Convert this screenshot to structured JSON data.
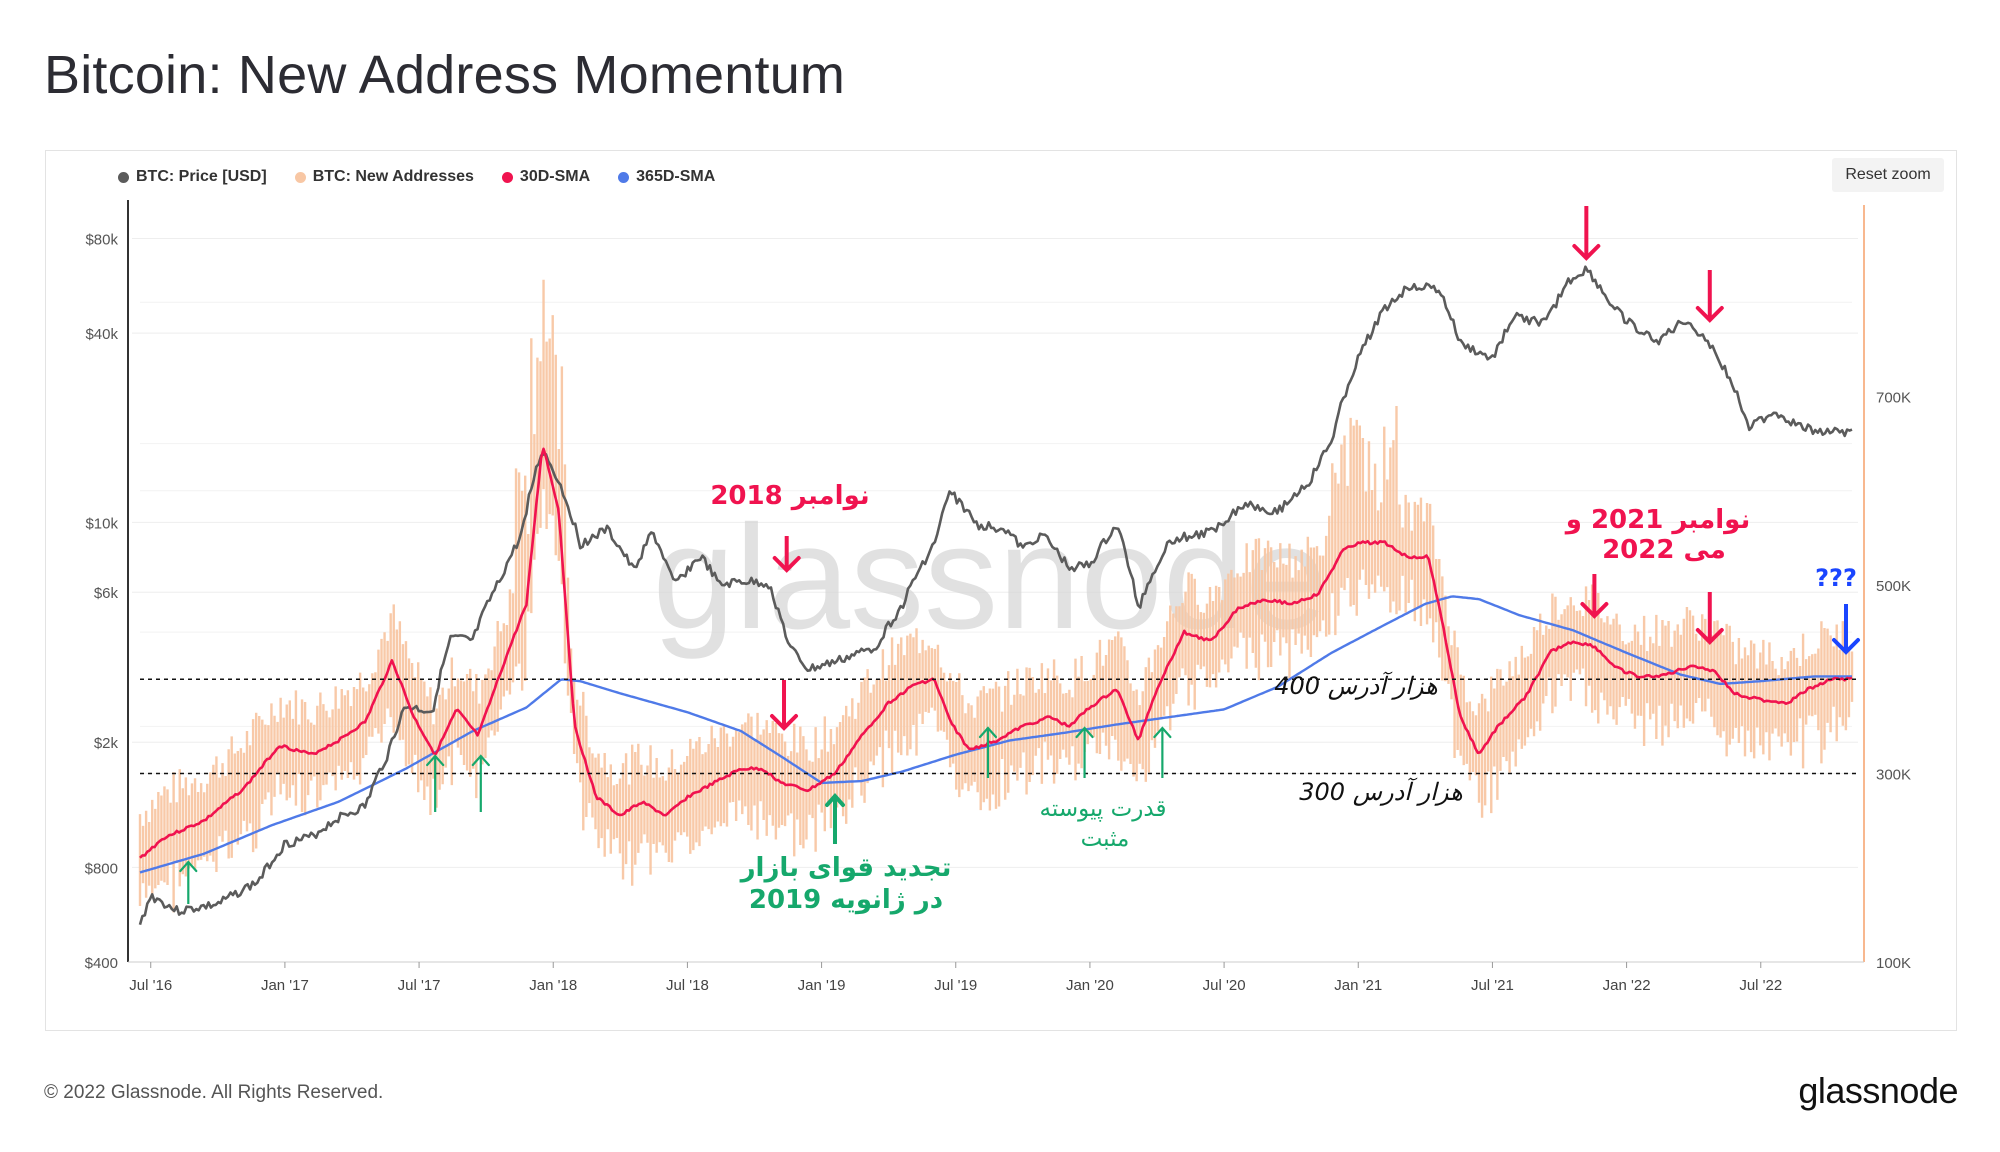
{
  "page": {
    "title": "Bitcoin: New Address Momentum",
    "reset_zoom": "Reset zoom",
    "copyright": "© 2022 Glassnode. All Rights Reserved.",
    "logo": "glassnode",
    "watermark": "glassnode"
  },
  "legend": [
    {
      "label": "BTC: Price [USD]",
      "color": "#5b5b5b"
    },
    {
      "label": "BTC: New Addresses",
      "color": "#f8c7a4"
    },
    {
      "label": "30D-SMA",
      "color": "#f0134f"
    },
    {
      "label": "365D-SMA",
      "color": "#4f7ae8"
    }
  ],
  "chart_data": {
    "type": "line",
    "title": "Bitcoin: New Address Momentum",
    "x_range": [
      2016.46,
      2022.84
    ],
    "x_ticks": [
      {
        "label": "Jul '16",
        "t": 2016.5
      },
      {
        "label": "Jan '17",
        "t": 2017.0
      },
      {
        "label": "Jul '17",
        "t": 2017.5
      },
      {
        "label": "Jan '18",
        "t": 2018.0
      },
      {
        "label": "Jul '18",
        "t": 2018.5
      },
      {
        "label": "Jan '19",
        "t": 2019.0
      },
      {
        "label": "Jul '19",
        "t": 2019.5
      },
      {
        "label": "Jan '20",
        "t": 2020.0
      },
      {
        "label": "Jul '20",
        "t": 2020.5
      },
      {
        "label": "Jan '21",
        "t": 2021.0
      },
      {
        "label": "Jul '21",
        "t": 2021.5
      },
      {
        "label": "Jan '22",
        "t": 2022.0
      },
      {
        "label": "Jul '22",
        "t": 2022.5
      }
    ],
    "left_axis": {
      "scale": "log",
      "range": [
        400,
        100000
      ],
      "ticks": [
        {
          "label": "$400",
          "v": 400
        },
        {
          "label": "$800",
          "v": 800
        },
        {
          "label": "$2k",
          "v": 2000
        },
        {
          "label": "$6k",
          "v": 6000
        },
        {
          "label": "$10k",
          "v": 10000
        },
        {
          "label": "$40k",
          "v": 40000
        },
        {
          "label": "$80k",
          "v": 80000
        }
      ]
    },
    "right_axis": {
      "scale": "linear",
      "range": [
        100000,
        900000
      ],
      "ticks": [
        {
          "label": "100K",
          "v": 100000
        },
        {
          "label": "300K",
          "v": 300000
        },
        {
          "label": "500K",
          "v": 500000
        },
        {
          "label": "700K",
          "v": 700000
        }
      ]
    },
    "series": [
      {
        "name": "BTC: Price [USD]",
        "axis": "left",
        "color": "#5b5b5b",
        "points": [
          [
            2016.46,
            520
          ],
          [
            2016.5,
            650
          ],
          [
            2016.6,
            580
          ],
          [
            2016.75,
            610
          ],
          [
            2016.9,
            720
          ],
          [
            2017.0,
            950
          ],
          [
            2017.1,
            1000
          ],
          [
            2017.2,
            1150
          ],
          [
            2017.3,
            1250
          ],
          [
            2017.38,
            1800
          ],
          [
            2017.45,
            2600
          ],
          [
            2017.55,
            2500
          ],
          [
            2017.62,
            4300
          ],
          [
            2017.7,
            4200
          ],
          [
            2017.8,
            6500
          ],
          [
            2017.88,
            9000
          ],
          [
            2017.96,
            17000
          ],
          [
            2018.02,
            13500
          ],
          [
            2018.1,
            8500
          ],
          [
            2018.2,
            9500
          ],
          [
            2018.3,
            7000
          ],
          [
            2018.37,
            9300
          ],
          [
            2018.45,
            6300
          ],
          [
            2018.55,
            7800
          ],
          [
            2018.62,
            6300
          ],
          [
            2018.7,
            6500
          ],
          [
            2018.8,
            6400
          ],
          [
            2018.88,
            4000
          ],
          [
            2018.95,
            3400
          ],
          [
            2019.05,
            3600
          ],
          [
            2019.2,
            4000
          ],
          [
            2019.3,
            5400
          ],
          [
            2019.42,
            8500
          ],
          [
            2019.48,
            12500
          ],
          [
            2019.58,
            9800
          ],
          [
            2019.68,
            9600
          ],
          [
            2019.75,
            8200
          ],
          [
            2019.82,
            9200
          ],
          [
            2019.92,
            7200
          ],
          [
            2020.0,
            7300
          ],
          [
            2020.1,
            9800
          ],
          [
            2020.18,
            5300
          ],
          [
            2020.3,
            8800
          ],
          [
            2020.45,
            9300
          ],
          [
            2020.58,
            11500
          ],
          [
            2020.7,
            10800
          ],
          [
            2020.82,
            13500
          ],
          [
            2020.9,
            18000
          ],
          [
            2021.0,
            33000
          ],
          [
            2021.1,
            48000
          ],
          [
            2021.2,
            57000
          ],
          [
            2021.3,
            55000
          ],
          [
            2021.38,
            37000
          ],
          [
            2021.5,
            33000
          ],
          [
            2021.58,
            45000
          ],
          [
            2021.7,
            43000
          ],
          [
            2021.78,
            58000
          ],
          [
            2021.85,
            64000
          ],
          [
            2021.95,
            48000
          ],
          [
            2022.05,
            40000
          ],
          [
            2022.12,
            38000
          ],
          [
            2022.22,
            44000
          ],
          [
            2022.3,
            38000
          ],
          [
            2022.37,
            30000
          ],
          [
            2022.46,
            20000
          ],
          [
            2022.55,
            22500
          ],
          [
            2022.65,
            20000
          ],
          [
            2022.75,
            19500
          ],
          [
            2022.84,
            19200
          ]
        ]
      },
      {
        "name": "30D-SMA",
        "axis": "right",
        "color": "#f0134f",
        "points": [
          [
            2016.46,
            210000
          ],
          [
            2016.55,
            232000
          ],
          [
            2016.7,
            250000
          ],
          [
            2016.85,
            285000
          ],
          [
            2016.98,
            330000
          ],
          [
            2017.1,
            320000
          ],
          [
            2017.2,
            335000
          ],
          [
            2017.3,
            355000
          ],
          [
            2017.4,
            420000
          ],
          [
            2017.48,
            360000
          ],
          [
            2017.56,
            320000
          ],
          [
            2017.64,
            368000
          ],
          [
            2017.72,
            340000
          ],
          [
            2017.82,
            420000
          ],
          [
            2017.9,
            480000
          ],
          [
            2017.96,
            650000
          ],
          [
            2018.02,
            580000
          ],
          [
            2018.08,
            350000
          ],
          [
            2018.16,
            275000
          ],
          [
            2018.25,
            255000
          ],
          [
            2018.33,
            270000
          ],
          [
            2018.42,
            255000
          ],
          [
            2018.5,
            275000
          ],
          [
            2018.6,
            290000
          ],
          [
            2018.7,
            305000
          ],
          [
            2018.78,
            305000
          ],
          [
            2018.85,
            290000
          ],
          [
            2018.95,
            282000
          ],
          [
            2019.05,
            300000
          ],
          [
            2019.15,
            340000
          ],
          [
            2019.25,
            375000
          ],
          [
            2019.35,
            395000
          ],
          [
            2019.42,
            400000
          ],
          [
            2019.48,
            355000
          ],
          [
            2019.55,
            325000
          ],
          [
            2019.65,
            335000
          ],
          [
            2019.75,
            350000
          ],
          [
            2019.85,
            360000
          ],
          [
            2019.92,
            350000
          ],
          [
            2020.0,
            370000
          ],
          [
            2020.1,
            390000
          ],
          [
            2020.18,
            335000
          ],
          [
            2020.25,
            390000
          ],
          [
            2020.35,
            450000
          ],
          [
            2020.45,
            440000
          ],
          [
            2020.55,
            475000
          ],
          [
            2020.65,
            485000
          ],
          [
            2020.75,
            480000
          ],
          [
            2020.85,
            490000
          ],
          [
            2020.95,
            540000
          ],
          [
            2021.02,
            545000
          ],
          [
            2021.1,
            545000
          ],
          [
            2021.18,
            530000
          ],
          [
            2021.26,
            530000
          ],
          [
            2021.3,
            480000
          ],
          [
            2021.38,
            360000
          ],
          [
            2021.45,
            320000
          ],
          [
            2021.52,
            350000
          ],
          [
            2021.62,
            380000
          ],
          [
            2021.72,
            430000
          ],
          [
            2021.8,
            440000
          ],
          [
            2021.88,
            435000
          ],
          [
            2021.96,
            412000
          ],
          [
            2022.05,
            402000
          ],
          [
            2022.15,
            405000
          ],
          [
            2022.25,
            415000
          ],
          [
            2022.33,
            408000
          ],
          [
            2022.4,
            385000
          ],
          [
            2022.5,
            378000
          ],
          [
            2022.6,
            375000
          ],
          [
            2022.68,
            390000
          ],
          [
            2022.76,
            400000
          ],
          [
            2022.84,
            400000
          ]
        ]
      },
      {
        "name": "365D-SMA",
        "axis": "right",
        "color": "#4f7ae8",
        "points": [
          [
            2016.46,
            195000
          ],
          [
            2016.7,
            215000
          ],
          [
            2016.95,
            245000
          ],
          [
            2017.2,
            270000
          ],
          [
            2017.45,
            305000
          ],
          [
            2017.7,
            345000
          ],
          [
            2017.9,
            370000
          ],
          [
            2018.03,
            400000
          ],
          [
            2018.1,
            398000
          ],
          [
            2018.25,
            385000
          ],
          [
            2018.5,
            365000
          ],
          [
            2018.7,
            345000
          ],
          [
            2018.85,
            318000
          ],
          [
            2019.0,
            290000
          ],
          [
            2019.15,
            292000
          ],
          [
            2019.3,
            302000
          ],
          [
            2019.5,
            320000
          ],
          [
            2019.7,
            335000
          ],
          [
            2019.9,
            343000
          ],
          [
            2020.1,
            352000
          ],
          [
            2020.3,
            360000
          ],
          [
            2020.5,
            368000
          ],
          [
            2020.7,
            392000
          ],
          [
            2020.9,
            428000
          ],
          [
            2021.1,
            458000
          ],
          [
            2021.25,
            480000
          ],
          [
            2021.35,
            488000
          ],
          [
            2021.45,
            485000
          ],
          [
            2021.6,
            468000
          ],
          [
            2021.8,
            452000
          ],
          [
            2022.0,
            428000
          ],
          [
            2022.2,
            405000
          ],
          [
            2022.35,
            395000
          ],
          [
            2022.5,
            398000
          ],
          [
            2022.7,
            403000
          ],
          [
            2022.84,
            403000
          ]
        ]
      },
      {
        "name": "BTC: New Addresses",
        "axis": "right",
        "color": "#f8c7a4",
        "note": "daily values oscillate around 30D-SMA",
        "amplitude": 45000
      }
    ],
    "reference_lines": [
      {
        "label": "400 هزار آدرس",
        "value": 400000
      },
      {
        "label": "300 هزار آدرس",
        "value": 300000
      }
    ],
    "annotations": {
      "nov2018": "نوامبر 2018",
      "nov2021_may2022_line1": "نوامبر 2021 و",
      "nov2021_may2022_line2": "می 2022",
      "question": "???",
      "jan2019_line1": "تجدید قوای بازار",
      "jan2019_line2": "در ژانویه 2019",
      "positive_line1": "قدرت پیوسته",
      "positive_line2": "مثبت"
    },
    "arrows": {
      "red_down": [
        2018.87,
        2021.85,
        2022.31
      ],
      "red_down_near_sma": [
        2018.86,
        2021.88,
        2022.31
      ],
      "blue_down": [
        2022.84
      ],
      "green_up_small": [
        2016.64,
        2017.56,
        2017.73,
        2019.62,
        2019.98,
        2020.27
      ],
      "green_up_big": [
        2019.05
      ]
    }
  }
}
